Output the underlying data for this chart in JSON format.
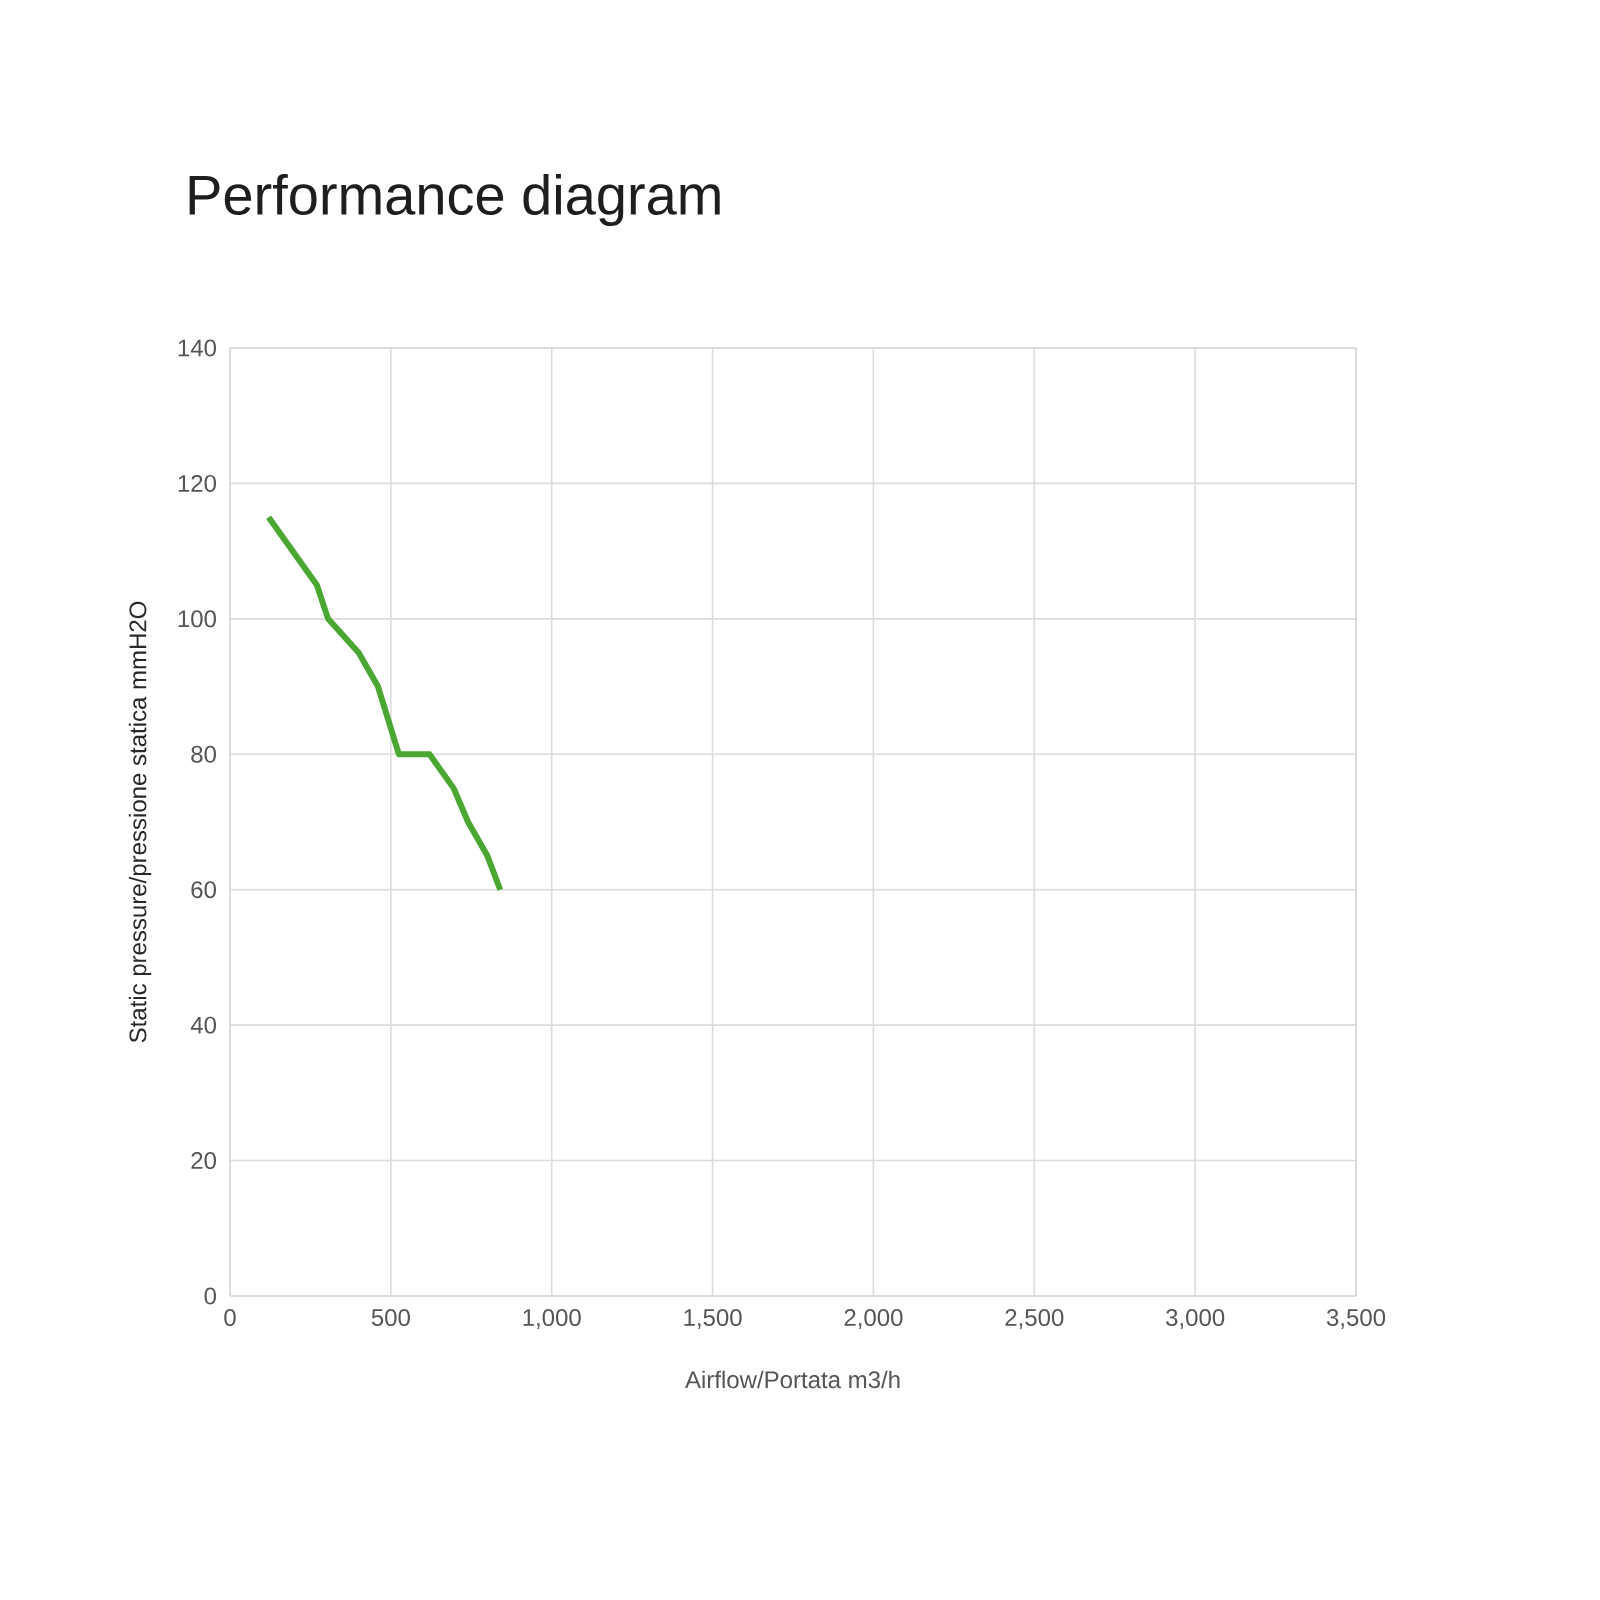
{
  "chart_data": {
    "type": "line",
    "title": "Performance diagram",
    "xlabel": "Airflow/Portata m3/h",
    "ylabel": "Static pressure/pressione statica mmH2O",
    "series": [
      {
        "color": "#4aa832",
        "x": [
          120,
          270,
          305,
          400,
          460,
          525,
          620,
          695,
          740,
          800,
          840
        ],
        "values": [
          115,
          105,
          100,
          95,
          90,
          80,
          80,
          75,
          70,
          65,
          60
        ]
      }
    ],
    "xlim": [
      0,
      3500
    ],
    "xticks": [
      {
        "value": 0,
        "label": "0"
      },
      {
        "value": 500,
        "label": "500"
      },
      {
        "value": 1000,
        "label": "1,000"
      },
      {
        "value": 1500,
        "label": "1,500"
      },
      {
        "value": 2000,
        "label": "2,000"
      },
      {
        "value": 2500,
        "label": "2,500"
      },
      {
        "value": 3000,
        "label": "3,000"
      },
      {
        "value": 3500,
        "label": "3,500"
      }
    ],
    "ylim": [
      0,
      140
    ],
    "yticks": [
      0,
      20,
      40,
      60,
      80,
      100,
      120,
      140
    ],
    "grid": true,
    "marker": "none",
    "line_style": "solid"
  }
}
